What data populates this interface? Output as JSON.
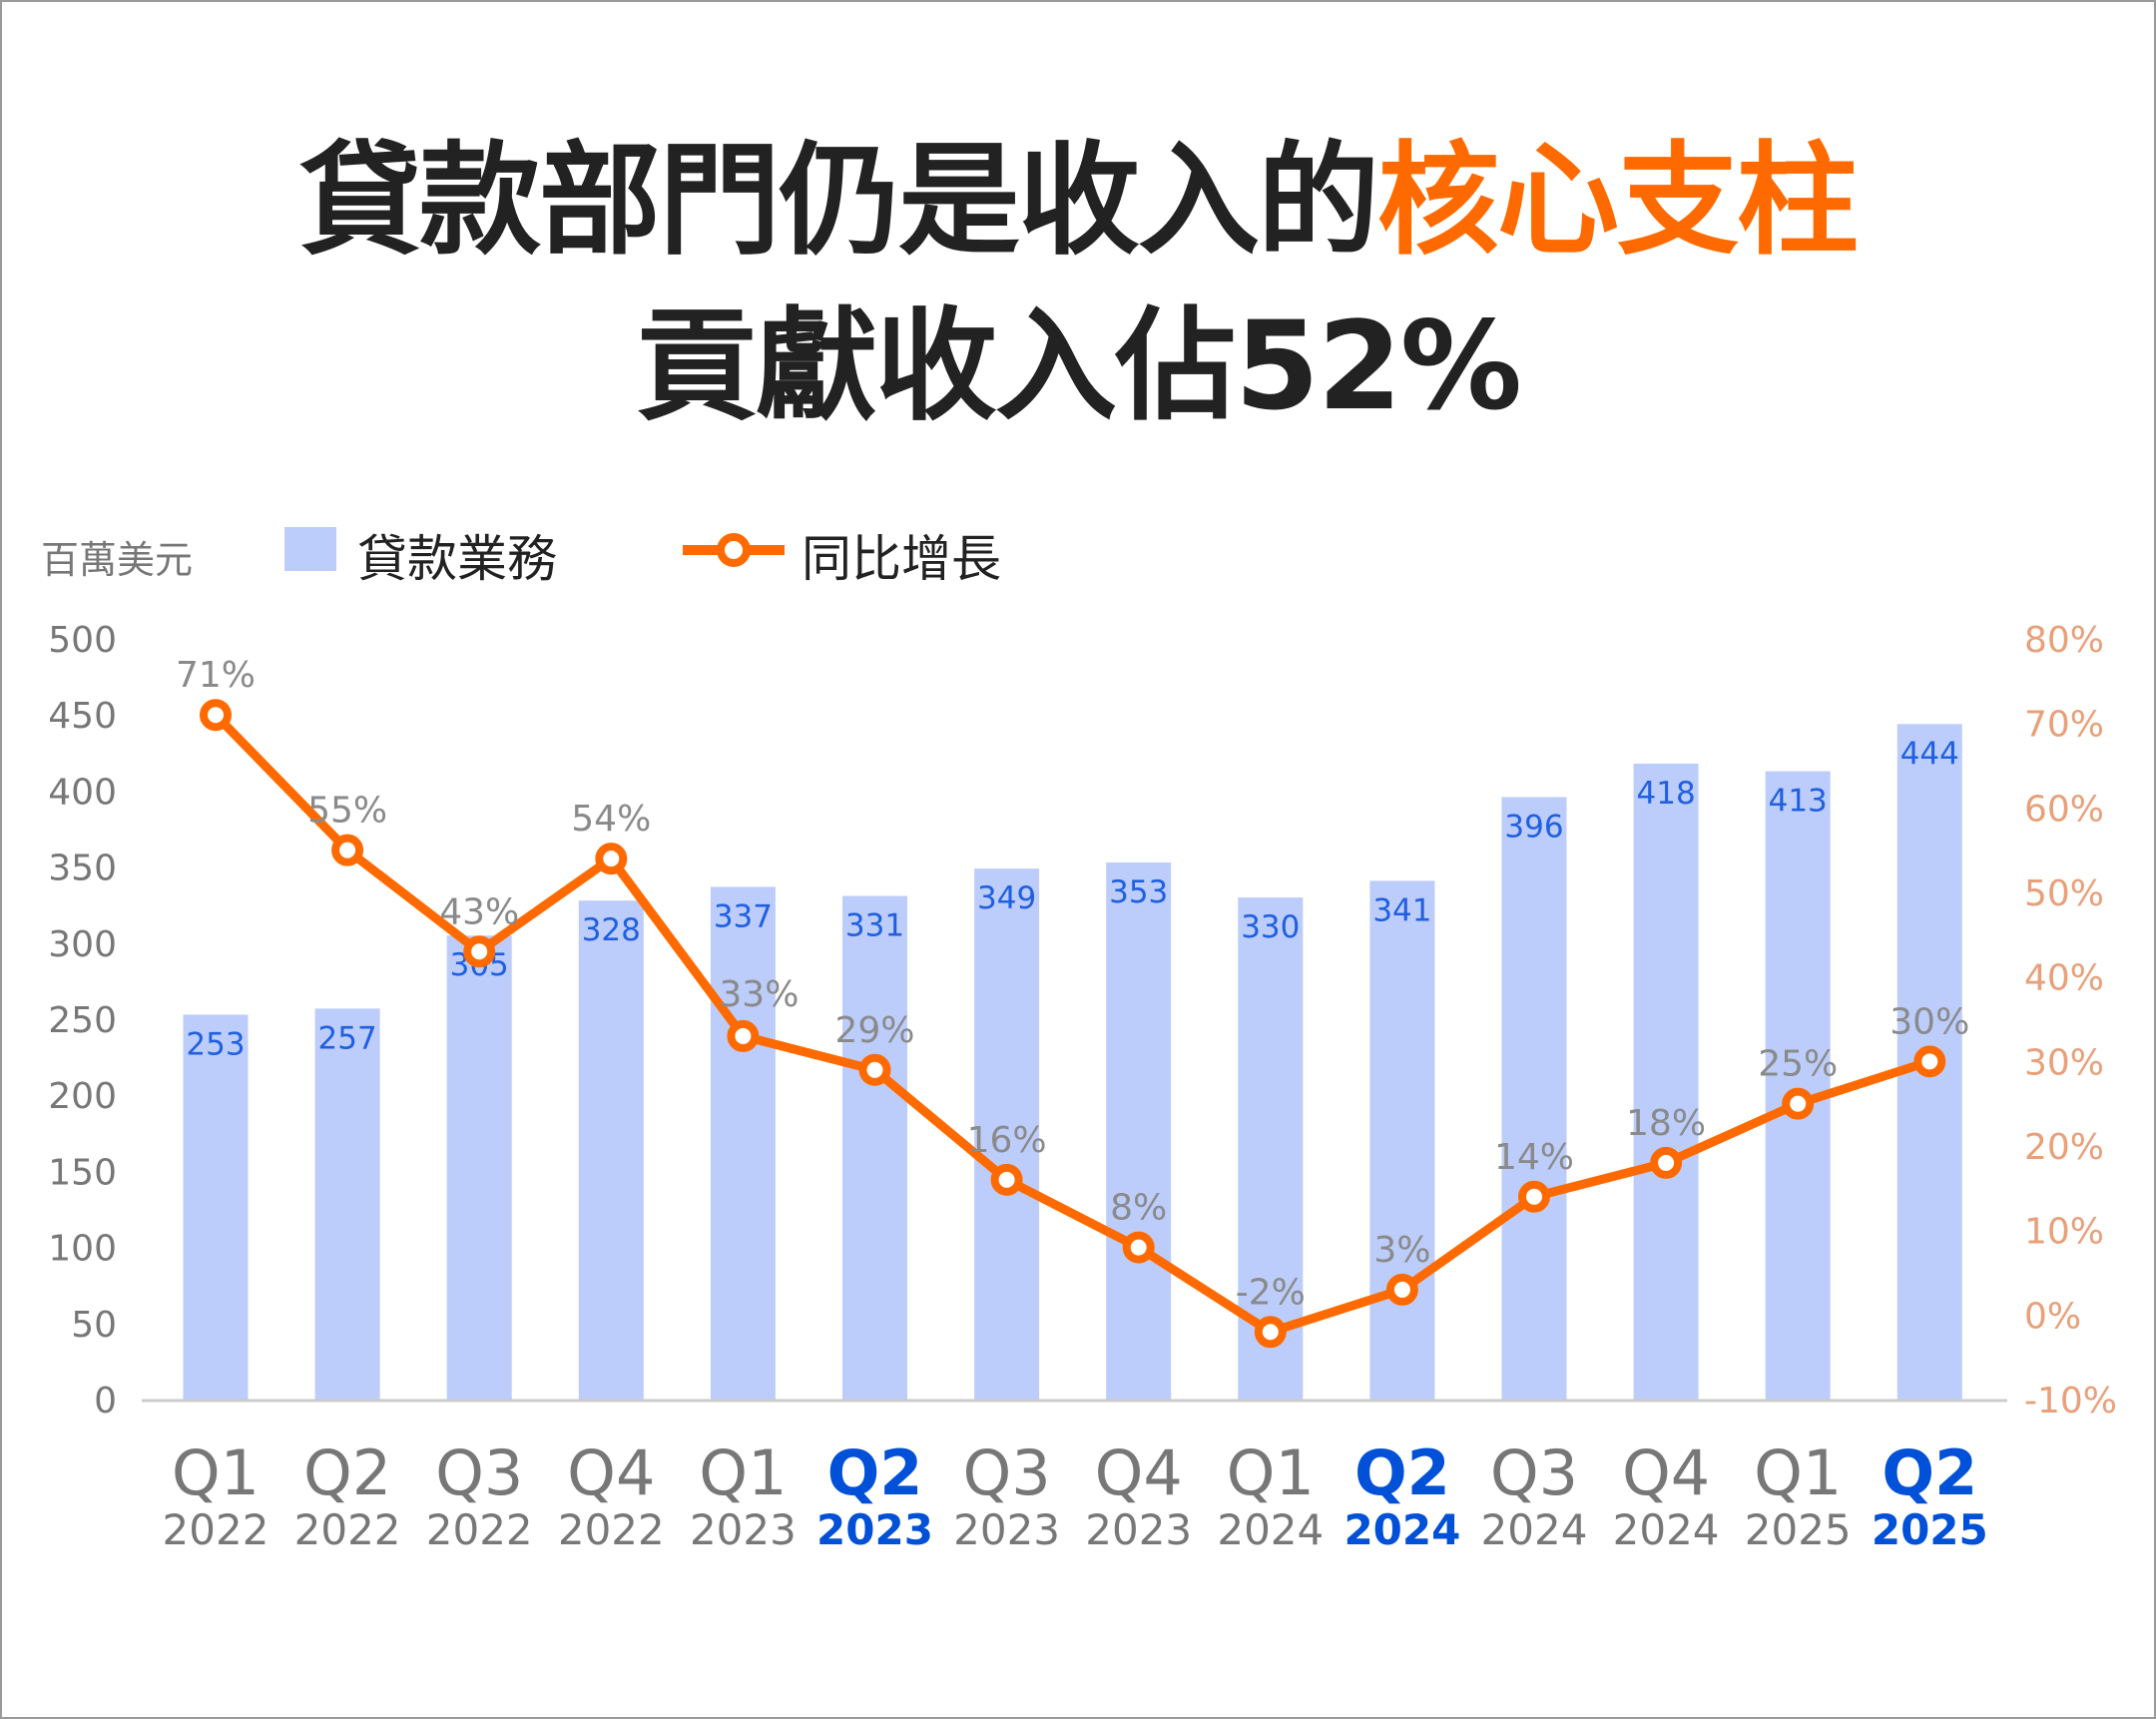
{
  "title": {
    "line1_plain": "貸款部門仍是收入的",
    "line1_highlight": "核心支柱",
    "line2": "貢獻收入佔52%"
  },
  "legend": {
    "unit": "百萬美元",
    "bar_label": "貸款業務",
    "line_label": "同比增長"
  },
  "colors": {
    "bar": "#bccdfb",
    "bar_label": "#1f5fe0",
    "line": "#ff6a00",
    "growth_label": "#8a8a8a",
    "right_axis": "#e8a07a",
    "left_axis": "#777777",
    "highlight": "#0050d8"
  },
  "chart_data": {
    "type": "bar+line",
    "categories": [
      {
        "q": "Q1",
        "year": "2022",
        "highlight": false
      },
      {
        "q": "Q2",
        "year": "2022",
        "highlight": false
      },
      {
        "q": "Q3",
        "year": "2022",
        "highlight": false
      },
      {
        "q": "Q4",
        "year": "2022",
        "highlight": false
      },
      {
        "q": "Q1",
        "year": "2023",
        "highlight": false
      },
      {
        "q": "Q2",
        "year": "2023",
        "highlight": true
      },
      {
        "q": "Q3",
        "year": "2023",
        "highlight": false
      },
      {
        "q": "Q4",
        "year": "2023",
        "highlight": false
      },
      {
        "q": "Q1",
        "year": "2024",
        "highlight": false
      },
      {
        "q": "Q2",
        "year": "2024",
        "highlight": true
      },
      {
        "q": "Q3",
        "year": "2024",
        "highlight": false
      },
      {
        "q": "Q4",
        "year": "2024",
        "highlight": false
      },
      {
        "q": "Q1",
        "year": "2025",
        "highlight": false
      },
      {
        "q": "Q2",
        "year": "2025",
        "highlight": true
      }
    ],
    "series": [
      {
        "name": "貸款業務",
        "type": "bar",
        "axis": "left",
        "values": [
          253,
          257,
          305,
          328,
          337,
          331,
          349,
          353,
          330,
          341,
          396,
          418,
          413,
          444
        ],
        "labels": [
          "253",
          "257",
          "305",
          "328",
          "337",
          "331",
          "349",
          "353",
          "330",
          "341",
          "396",
          "418",
          "413",
          "444"
        ]
      },
      {
        "name": "同比增長",
        "type": "line",
        "axis": "right",
        "values": [
          71,
          55,
          43,
          54,
          33,
          29,
          16,
          8,
          -2,
          3,
          14,
          18,
          25,
          30
        ],
        "labels": [
          "71%",
          "55%",
          "43%",
          "54%",
          "33%",
          "29%",
          "16%",
          "8%",
          "-2%",
          "3%",
          "14%",
          "18%",
          "25%",
          "30%"
        ]
      }
    ],
    "left_axis": {
      "ylim": [
        0,
        500
      ],
      "ticks": [
        "0",
        "50",
        "100",
        "150",
        "200",
        "250",
        "300",
        "350",
        "400",
        "450",
        "500"
      ],
      "unit": "百萬美元"
    },
    "right_axis": {
      "ylim": [
        -10,
        80
      ],
      "ticks": [
        "-10%",
        "0%",
        "10%",
        "20%",
        "30%",
        "40%",
        "50%",
        "60%",
        "70%",
        "80%"
      ]
    },
    "grid": false,
    "legend_position": "top-left"
  }
}
